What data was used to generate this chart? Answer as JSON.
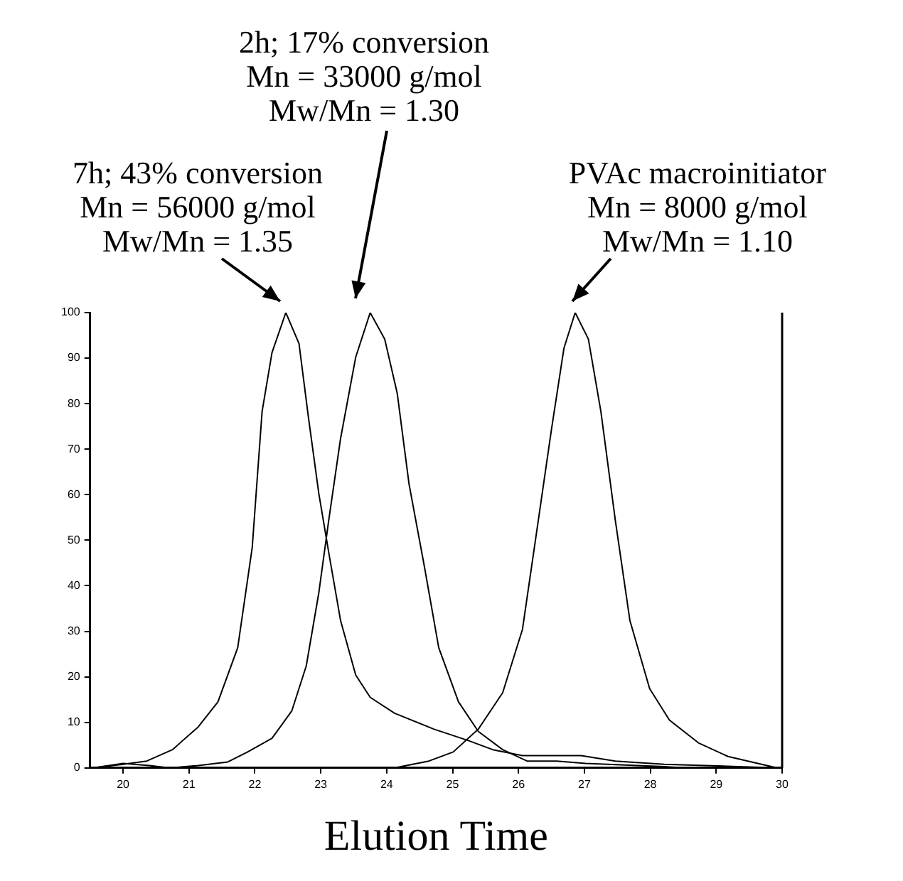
{
  "chart_data": {
    "type": "line",
    "xlabel": "Elution Time",
    "xlim": [
      19.5,
      30
    ],
    "xticks": [
      20,
      21,
      22,
      23,
      24,
      25,
      26,
      27,
      28,
      29,
      30
    ],
    "ylim": [
      0,
      100
    ],
    "yticks": [
      0,
      10,
      20,
      30,
      40,
      50,
      60,
      70,
      80,
      90,
      100
    ],
    "grid": false,
    "legend": false,
    "marker": "none",
    "line_style": "solid",
    "series": [
      {
        "color": "#000000",
        "x": [
          19.55,
          20.0,
          20.36,
          20.75,
          21.14,
          21.44,
          21.74,
          21.96,
          22.11,
          22.26,
          22.47,
          22.67,
          22.81,
          22.97,
          23.12,
          23.3,
          23.53,
          23.75,
          24.12,
          24.72,
          25.24,
          25.61,
          26.06,
          26.95,
          27.47,
          28.21,
          29.33,
          29.92
        ],
        "values": [
          0,
          0.8,
          1.5,
          4,
          9,
          14.5,
          26.4,
          48.4,
          78.3,
          91.2,
          100,
          93.2,
          77.3,
          60.3,
          47.4,
          32.4,
          20.4,
          15.5,
          12,
          8.5,
          6,
          4,
          2.7,
          2.7,
          1.5,
          0.8,
          0.3,
          0
        ]
      },
      {
        "color": "#000000",
        "x": [
          19.55,
          20.0,
          20.4,
          20.7,
          21.14,
          21.59,
          21.89,
          22.26,
          22.56,
          22.78,
          22.97,
          23.12,
          23.3,
          23.53,
          23.75,
          23.97,
          24.16,
          24.34,
          24.57,
          24.79,
          25.09,
          25.39,
          25.76,
          26.13,
          26.58,
          27.02,
          28.21,
          28.51
        ],
        "values": [
          0,
          1,
          0.5,
          0,
          0.5,
          1.3,
          3.5,
          6.5,
          12.5,
          22.4,
          38.4,
          54.3,
          72.3,
          90.2,
          100,
          94.2,
          82.3,
          62.3,
          44.4,
          26.4,
          14.5,
          8,
          4,
          1.5,
          1.5,
          1,
          0.3,
          0
        ]
      },
      {
        "color": "#000000",
        "x": [
          24.12,
          24.64,
          25.01,
          25.39,
          25.76,
          26.06,
          26.28,
          26.5,
          26.69,
          26.86,
          27.06,
          27.25,
          27.47,
          27.69,
          27.99,
          28.29,
          28.73,
          29.18,
          29.92
        ],
        "values": [
          0,
          1.5,
          3.5,
          8.5,
          16.5,
          30.4,
          52.3,
          74.3,
          92.2,
          100,
          94.2,
          78.3,
          54.3,
          32.4,
          17.4,
          10.5,
          5.5,
          2.5,
          0
        ]
      }
    ],
    "annotations": [
      {
        "text": "7h; 43% conversion\nMn = 56000 g/mol\nMw/Mn = 1.35",
        "x": 22.47,
        "y": 100
      },
      "2h; 17% conversion\nMn = 33000 g/mol\nMw/Mn = 1.30",
      {
        "text": "PVAc macroinitiator\nMn = 8000 g/mol\nMw/Mn = 1.10",
        "x": 26.86,
        "y": 100
      }
    ]
  }
}
